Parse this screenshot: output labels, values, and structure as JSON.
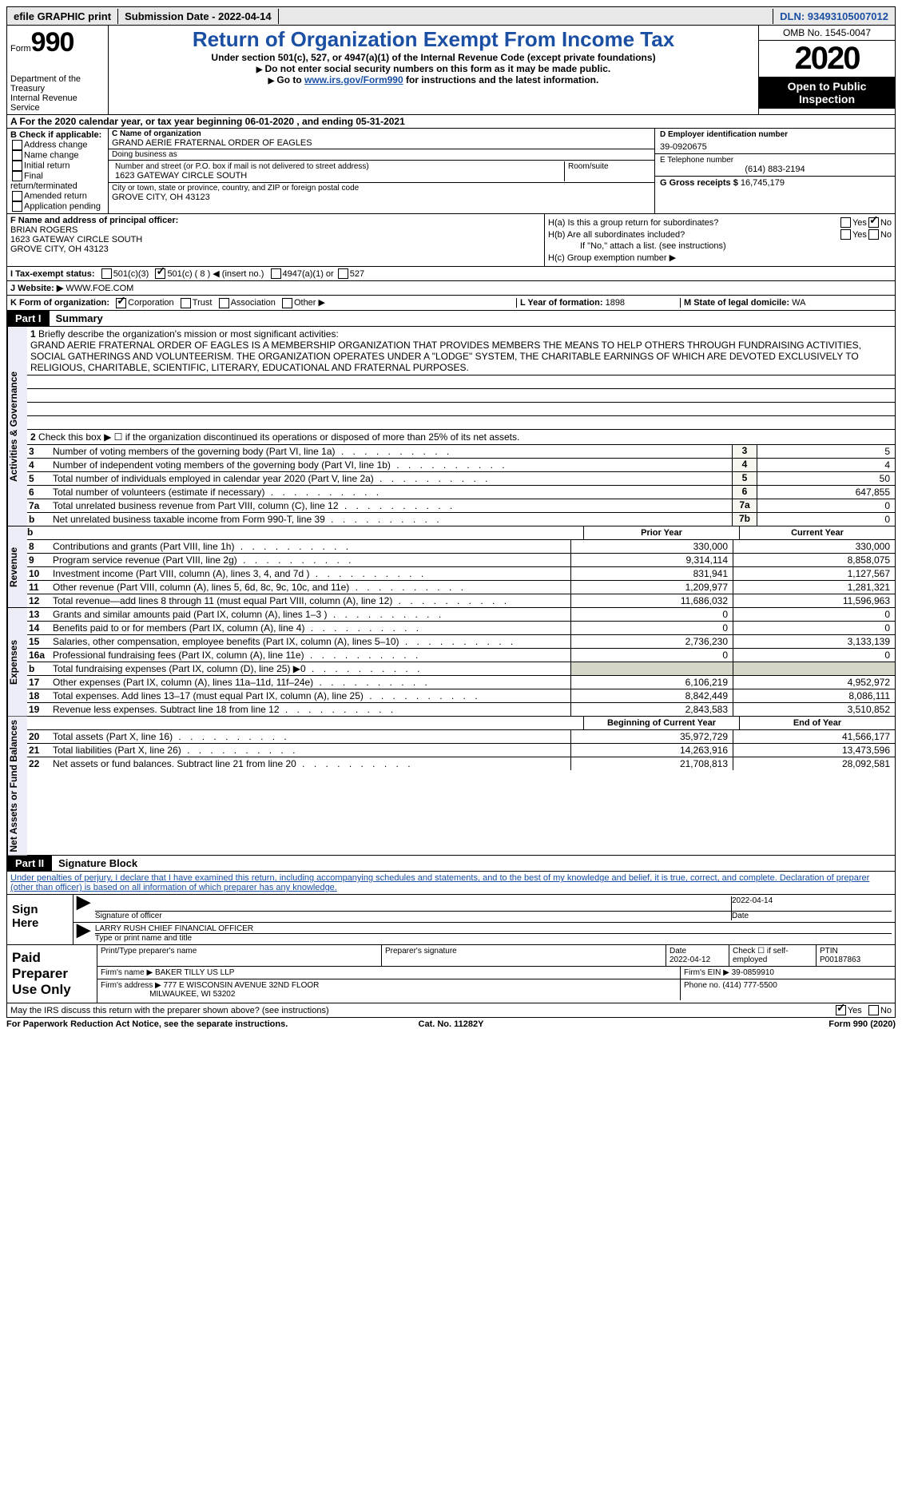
{
  "topbar": {
    "efile": "efile GRAPHIC print",
    "submission": "Submission Date - 2022-04-14",
    "dln": "DLN: 93493105007012"
  },
  "header": {
    "form_prefix": "Form",
    "form_number": "990",
    "dept": "Department of the Treasury",
    "irs": "Internal Revenue Service",
    "title": "Return of Organization Exempt From Income Tax",
    "subtitle": "Under section 501(c), 527, or 4947(a)(1) of the Internal Revenue Code (except private foundations)",
    "inst1": "Do not enter social security numbers on this form as it may be made public.",
    "inst2a": "Go to ",
    "inst2_link": "www.irs.gov/Form990",
    "inst2b": " for instructions and the latest information.",
    "omb": "OMB No. 1545-0047",
    "year": "2020",
    "open": "Open to Public Inspection"
  },
  "rowA": "A  For the 2020 calendar year, or tax year beginning 06-01-2020   , and ending 05-31-2021",
  "colB": {
    "header": "B Check if applicable:",
    "items": [
      "Address change",
      "Name change",
      "Initial return",
      "Final return/terminated",
      "Amended return",
      "Application pending"
    ]
  },
  "colC": {
    "name_label": "C Name of organization",
    "name": "GRAND AERIE FRATERNAL ORDER OF EAGLES",
    "dba_label": "Doing business as",
    "dba": "",
    "addr_label": "Number and street (or P.O. box if mail is not delivered to street address)",
    "room_label": "Room/suite",
    "addr": "1623 GATEWAY CIRCLE SOUTH",
    "city_label": "City or town, state or province, country, and ZIP or foreign postal code",
    "city": "GROVE CITY, OH  43123"
  },
  "colD": {
    "d_label": "D Employer identification number",
    "ein": "39-0920675",
    "e_label": "E Telephone number",
    "phone": "(614) 883-2194",
    "g_label": "G Gross receipts $",
    "gross": "16,745,179"
  },
  "rowF": {
    "f_label": "F Name and address of principal officer:",
    "name": "BRIAN ROGERS",
    "addr1": "1623 GATEWAY CIRCLE SOUTH",
    "addr2": "GROVE CITY, OH  43123"
  },
  "rowH": {
    "ha": "H(a)  Is this a group return for subordinates?",
    "hb": "H(b)  Are all subordinates included?",
    "hb_note": "If \"No,\" attach a list. (see instructions)",
    "hc": "H(c)  Group exemption number ▶",
    "yes": "Yes",
    "no": "No"
  },
  "rowI": {
    "label": "I   Tax-exempt status:",
    "o1": "501(c)(3)",
    "o2": "501(c) ( 8 ) ◀ (insert no.)",
    "o3": "4947(a)(1) or",
    "o4": "527"
  },
  "rowJ": {
    "label": "J   Website: ▶",
    "value": "WWW.FOE.COM"
  },
  "rowK": {
    "label": "K Form of organization:",
    "opts": [
      "Corporation",
      "Trust",
      "Association",
      "Other ▶"
    ],
    "l_label": "L Year of formation:",
    "l_val": "1898",
    "m_label": "M State of legal domicile:",
    "m_val": "WA"
  },
  "part1": {
    "label": "Part I",
    "title": "Summary",
    "vtab1": "Activities & Governance",
    "vtab2": "Revenue",
    "vtab3": "Expenses",
    "vtab4": "Net Assets or Fund Balances",
    "line1_label": "Briefly describe the organization's mission or most significant activities:",
    "mission": "GRAND AERIE FRATERNAL ORDER OF EAGLES IS A MEMBERSHIP ORGANIZATION THAT PROVIDES MEMBERS THE MEANS TO HELP OTHERS THROUGH FUNDRAISING ACTIVITIES, SOCIAL GATHERINGS AND VOLUNTEERISM. THE ORGANIZATION OPERATES UNDER A \"LODGE\" SYSTEM, THE CHARITABLE EARNINGS OF WHICH ARE DEVOTED EXCLUSIVELY TO RELIGIOUS, CHARITABLE, SCIENTIFIC, LITERARY, EDUCATIONAL AND FRATERNAL PURPOSES.",
    "line2": "Check this box ▶ ☐ if the organization discontinued its operations or disposed of more than 25% of its net assets.",
    "lines_single": [
      {
        "n": "3",
        "t": "Number of voting members of the governing body (Part VI, line 1a)",
        "c": "3",
        "v": "5"
      },
      {
        "n": "4",
        "t": "Number of independent voting members of the governing body (Part VI, line 1b)",
        "c": "4",
        "v": "4"
      },
      {
        "n": "5",
        "t": "Total number of individuals employed in calendar year 2020 (Part V, line 2a)",
        "c": "5",
        "v": "50"
      },
      {
        "n": "6",
        "t": "Total number of volunteers (estimate if necessary)",
        "c": "6",
        "v": "647,855"
      },
      {
        "n": "7a",
        "t": "Total unrelated business revenue from Part VIII, column (C), line 12",
        "c": "7a",
        "v": "0"
      },
      {
        "n": "b",
        "t": "Net unrelated business taxable income from Form 990-T, line 39",
        "c": "7b",
        "v": "0"
      }
    ],
    "col_headers": {
      "prior": "Prior Year",
      "curr": "Current Year"
    },
    "revenue": [
      {
        "n": "8",
        "t": "Contributions and grants (Part VIII, line 1h)",
        "p": "330,000",
        "c": "330,000"
      },
      {
        "n": "9",
        "t": "Program service revenue (Part VIII, line 2g)",
        "p": "9,314,114",
        "c": "8,858,075"
      },
      {
        "n": "10",
        "t": "Investment income (Part VIII, column (A), lines 3, 4, and 7d )",
        "p": "831,941",
        "c": "1,127,567"
      },
      {
        "n": "11",
        "t": "Other revenue (Part VIII, column (A), lines 5, 6d, 8c, 9c, 10c, and 11e)",
        "p": "1,209,977",
        "c": "1,281,321"
      },
      {
        "n": "12",
        "t": "Total revenue—add lines 8 through 11 (must equal Part VIII, column (A), line 12)",
        "p": "11,686,032",
        "c": "11,596,963"
      }
    ],
    "expenses": [
      {
        "n": "13",
        "t": "Grants and similar amounts paid (Part IX, column (A), lines 1–3 )",
        "p": "0",
        "c": "0"
      },
      {
        "n": "14",
        "t": "Benefits paid to or for members (Part IX, column (A), line 4)",
        "p": "0",
        "c": "0"
      },
      {
        "n": "15",
        "t": "Salaries, other compensation, employee benefits (Part IX, column (A), lines 5–10)",
        "p": "2,736,230",
        "c": "3,133,139"
      },
      {
        "n": "16a",
        "t": "Professional fundraising fees (Part IX, column (A), line 11e)",
        "p": "0",
        "c": "0"
      },
      {
        "n": "b",
        "t": "Total fundraising expenses (Part IX, column (D), line 25) ▶0",
        "p": "GREY",
        "c": "GREY"
      },
      {
        "n": "17",
        "t": "Other expenses (Part IX, column (A), lines 11a–11d, 11f–24e)",
        "p": "6,106,219",
        "c": "4,952,972"
      },
      {
        "n": "18",
        "t": "Total expenses. Add lines 13–17 (must equal Part IX, column (A), line 25)",
        "p": "8,842,449",
        "c": "8,086,111"
      },
      {
        "n": "19",
        "t": "Revenue less expenses. Subtract line 18 from line 12",
        "p": "2,843,583",
        "c": "3,510,852"
      }
    ],
    "net_headers": {
      "b": "Beginning of Current Year",
      "e": "End of Year"
    },
    "net": [
      {
        "n": "20",
        "t": "Total assets (Part X, line 16)",
        "p": "35,972,729",
        "c": "41,566,177"
      },
      {
        "n": "21",
        "t": "Total liabilities (Part X, line 26)",
        "p": "14,263,916",
        "c": "13,473,596"
      },
      {
        "n": "22",
        "t": "Net assets or fund balances. Subtract line 21 from line 20",
        "p": "21,708,813",
        "c": "28,092,581"
      }
    ]
  },
  "part2": {
    "label": "Part II",
    "title": "Signature Block",
    "declaration": "Under penalties of perjury, I declare that I have examined this return, including accompanying schedules and statements, and to the best of my knowledge and belief, it is true, correct, and complete. Declaration of preparer (other than officer) is based on all information of which preparer has any knowledge.",
    "sign_here": "Sign Here",
    "sig_label": "Signature of officer",
    "sig_date": "2022-04-14",
    "date_label": "Date",
    "officer": "LARRY RUSH  CHIEF FINANCIAL OFFICER",
    "officer_label": "Type or print name and title",
    "paid": "Paid Preparer Use Only",
    "ph1": "Print/Type preparer's name",
    "ph2": "Preparer's signature",
    "ph3": "Date",
    "ph3v": "2022-04-12",
    "ph4": "Check ☐ if self-employed",
    "ph5": "PTIN",
    "ptin": "P00187863",
    "firm_label": "Firm's name    ▶",
    "firm": "BAKER TILLY US LLP",
    "ein_label": "Firm's EIN ▶",
    "firm_ein": "39-0859910",
    "addr_label": "Firm's address ▶",
    "firm_addr1": "777 E WISCONSIN AVENUE 32ND FLOOR",
    "firm_addr2": "MILWAUKEE, WI  53202",
    "phone_label": "Phone no.",
    "firm_phone": "(414) 777-5500",
    "discuss": "May the IRS discuss this return with the preparer shown above? (see instructions)",
    "yes": "Yes",
    "no": "No"
  },
  "footer": {
    "left": "For Paperwork Reduction Act Notice, see the separate instructions.",
    "mid": "Cat. No. 11282Y",
    "right": "Form 990 (2020)"
  }
}
